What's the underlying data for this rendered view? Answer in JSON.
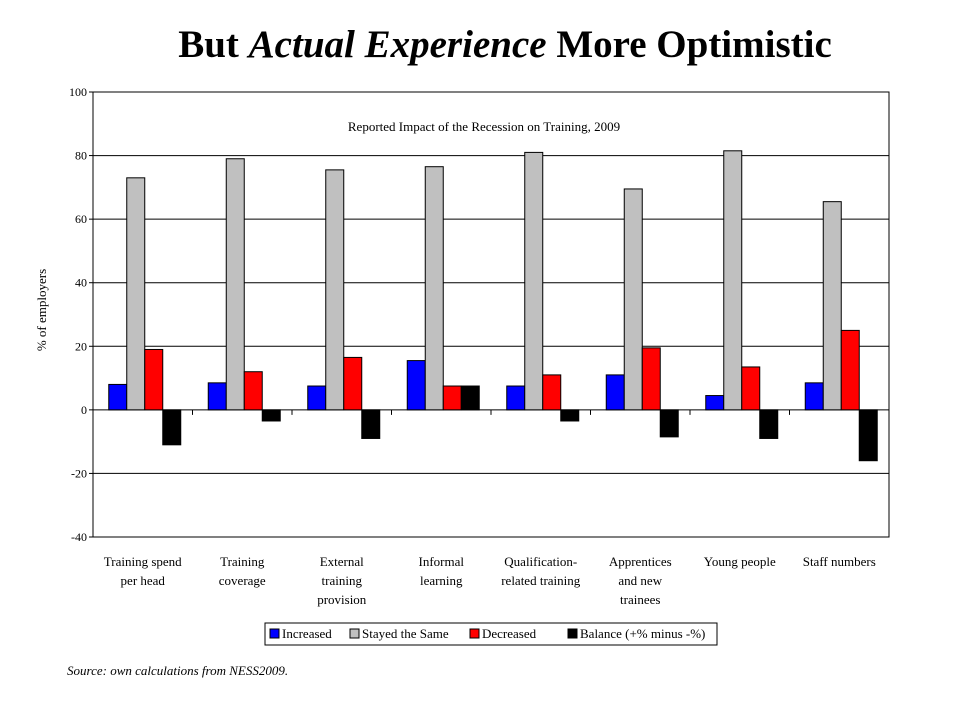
{
  "slide": {
    "title_part1": "But ",
    "title_part2": "Actual Experience",
    "title_part3": " More Optimistic",
    "source": "Source: own calculations from NESS2009."
  },
  "chart_data": {
    "type": "bar",
    "title": "Reported Impact of the Recession on Training,  2009",
    "xlabel": "",
    "ylabel": "% of employers",
    "ylim": [
      -40,
      100
    ],
    "yticks": [
      -40,
      -20,
      0,
      20,
      40,
      60,
      80,
      100
    ],
    "grid": true,
    "legend_position": "bottom",
    "categories": [
      [
        "Training spend",
        "per head"
      ],
      [
        "Training",
        "coverage"
      ],
      [
        "External",
        "training",
        "provision"
      ],
      [
        "Informal",
        "learning"
      ],
      [
        "Qualification-",
        "related training"
      ],
      [
        "Apprentices",
        "and new",
        "trainees"
      ],
      [
        "Young people"
      ],
      [
        "Staff numbers"
      ]
    ],
    "series": [
      {
        "name": "Increased",
        "color": "#0000ff",
        "values": [
          8,
          8.5,
          7.5,
          15.5,
          7.5,
          11,
          4.5,
          8.5
        ]
      },
      {
        "name": "Stayed the Same",
        "color": "#c0c0c0",
        "values": [
          73,
          79,
          75.5,
          76.5,
          81,
          69.5,
          81.5,
          65.5
        ]
      },
      {
        "name": "Decreased",
        "color": "#ff0000",
        "values": [
          19,
          12,
          16.5,
          7.5,
          11,
          19.5,
          13.5,
          25
        ]
      },
      {
        "name": "Balance (+% minus -%)",
        "color": "#000000",
        "values": [
          -11,
          -3.5,
          -9,
          7.5,
          -3.5,
          -8.5,
          -9,
          -16
        ]
      }
    ]
  }
}
